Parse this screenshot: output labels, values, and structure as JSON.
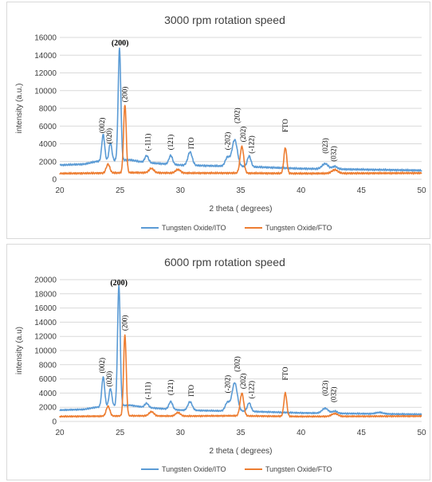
{
  "chart_data": [
    {
      "type": "line",
      "title": "3000 rpm rotation speed",
      "xlabel": "2 theta ( degrees)",
      "ylabel": "intensity (a.u.)",
      "xlim": [
        20,
        50
      ],
      "ylim": [
        0,
        16000
      ],
      "xticks": [
        "20",
        "25",
        "30",
        "35",
        "40",
        "45",
        "50"
      ],
      "yticks": [
        "0",
        "2000",
        "4000",
        "6000",
        "8000",
        "10000",
        "12000",
        "14000",
        "16000"
      ],
      "grid": "horizontal",
      "legend_position": "bottom",
      "series": [
        {
          "name": "Tungsten Oxide/ITO",
          "color": "#5b9bd5",
          "baseline": [
            [
              20,
              1600
            ],
            [
              22,
              1700
            ],
            [
              23,
              2000
            ],
            [
              25.8,
              2200
            ],
            [
              27,
              1900
            ],
            [
              30,
              1600
            ],
            [
              33,
              1500
            ],
            [
              36,
              1400
            ],
            [
              40,
              1200
            ],
            [
              45,
              1100
            ],
            [
              50,
              1000
            ]
          ],
          "peaks": [
            [
              23.6,
              3000,
              0.12
            ],
            [
              24.2,
              2000,
              0.12
            ],
            [
              24.95,
              12600,
              0.11
            ],
            [
              27.2,
              800,
              0.15
            ],
            [
              29.2,
              1000,
              0.15
            ],
            [
              30.8,
              1500,
              0.18
            ],
            [
              33.9,
              1000,
              0.18
            ],
            [
              34.5,
              3000,
              0.22
            ],
            [
              35.7,
              1200,
              0.15
            ],
            [
              42.0,
              600,
              0.25
            ],
            [
              42.8,
              300,
              0.2
            ]
          ]
        },
        {
          "name": "Tungsten Oxide/FTO",
          "color": "#ed7d31",
          "baseline": [
            [
              20,
              650
            ],
            [
              24,
              700
            ],
            [
              26,
              750
            ],
            [
              30,
              700
            ],
            [
              34,
              700
            ],
            [
              40,
              650
            ],
            [
              50,
              700
            ]
          ],
          "peaks": [
            [
              24.0,
              1000,
              0.15
            ],
            [
              25.4,
              7700,
              0.11
            ],
            [
              27.6,
              500,
              0.2
            ],
            [
              29.8,
              400,
              0.2
            ],
            [
              35.1,
              3000,
              0.15
            ],
            [
              38.7,
              2900,
              0.12
            ],
            [
              42.8,
              400,
              0.25
            ]
          ]
        }
      ],
      "annotations": [
        {
          "text": "(200)",
          "x": 25.0,
          "y": 15100,
          "bold": true
        },
        {
          "text": "(002)",
          "x": 23.7,
          "y": 5200,
          "rotate": true
        },
        {
          "text": "(020)",
          "x": 24.3,
          "y": 4000,
          "rotate": true
        },
        {
          "text": "(200)",
          "x": 25.6,
          "y": 8700,
          "rotate": true
        },
        {
          "text": "(-111)",
          "x": 27.5,
          "y": 3200,
          "rotate": true
        },
        {
          "text": "(121)",
          "x": 29.4,
          "y": 3300,
          "rotate": true
        },
        {
          "text": "ITO",
          "x": 31.1,
          "y": 3400,
          "rotate": true
        },
        {
          "text": "(-202)",
          "x": 34.1,
          "y": 3300,
          "rotate": true
        },
        {
          "text": "(202)",
          "x": 34.9,
          "y": 6300,
          "rotate": true
        },
        {
          "text": "(202)",
          "x": 35.4,
          "y": 4200,
          "rotate": true
        },
        {
          "text": "(-122)",
          "x": 36.1,
          "y": 2900,
          "rotate": true
        },
        {
          "text": "FTO",
          "x": 38.9,
          "y": 5300,
          "rotate": true
        },
        {
          "text": "(023)",
          "x": 42.2,
          "y": 2900,
          "rotate": true
        },
        {
          "text": "(032)",
          "x": 42.9,
          "y": 2000,
          "rotate": true
        }
      ]
    },
    {
      "type": "line",
      "title": "6000 rpm rotation speed",
      "xlabel": "2 theta ( degrees)",
      "ylabel": "intensity (a.u)",
      "xlim": [
        20,
        50
      ],
      "ylim": [
        0,
        20000
      ],
      "xticks": [
        "20",
        "25",
        "30",
        "35",
        "40",
        "45",
        "50"
      ],
      "yticks": [
        "0",
        "2000",
        "4000",
        "6000",
        "8000",
        "10000",
        "12000",
        "14000",
        "16000",
        "18000",
        "20000"
      ],
      "grid": "horizontal",
      "legend_position": "bottom",
      "series": [
        {
          "name": "Tungsten Oxide/ITO",
          "color": "#5b9bd5",
          "baseline": [
            [
              20,
              1600
            ],
            [
              22,
              1700
            ],
            [
              23,
              2000
            ],
            [
              25.8,
              2300
            ],
            [
              27,
              2000
            ],
            [
              30,
              1600
            ],
            [
              33,
              1500
            ],
            [
              36,
              1400
            ],
            [
              40,
              1200
            ],
            [
              45,
              1100
            ],
            [
              50,
              1000
            ]
          ],
          "peaks": [
            [
              23.6,
              4200,
              0.12
            ],
            [
              24.2,
              2500,
              0.12
            ],
            [
              24.9,
              17000,
              0.11
            ],
            [
              27.2,
              600,
              0.15
            ],
            [
              29.2,
              1100,
              0.15
            ],
            [
              30.8,
              1200,
              0.18
            ],
            [
              33.9,
              1200,
              0.18
            ],
            [
              34.5,
              4000,
              0.22
            ],
            [
              35.7,
              1200,
              0.15
            ],
            [
              42.0,
              700,
              0.25
            ],
            [
              42.8,
              300,
              0.2
            ],
            [
              46.5,
              200,
              0.3
            ]
          ]
        },
        {
          "name": "Tungsten Oxide/FTO",
          "color": "#ed7d31",
          "baseline": [
            [
              20,
              700
            ],
            [
              24,
              750
            ],
            [
              26,
              800
            ],
            [
              30,
              750
            ],
            [
              34,
              800
            ],
            [
              40,
              700
            ],
            [
              50,
              750
            ]
          ],
          "peaks": [
            [
              24.0,
              1400,
              0.15
            ],
            [
              25.4,
              11400,
              0.11
            ],
            [
              27.6,
              600,
              0.2
            ],
            [
              29.8,
              500,
              0.2
            ],
            [
              35.1,
              3200,
              0.15
            ],
            [
              38.7,
              3300,
              0.12
            ],
            [
              42.8,
              400,
              0.25
            ]
          ]
        }
      ],
      "annotations": [
        {
          "text": "(200)",
          "x": 24.9,
          "y": 19200,
          "bold": true
        },
        {
          "text": "(002)",
          "x": 23.7,
          "y": 6800,
          "rotate": true
        },
        {
          "text": "(020)",
          "x": 24.3,
          "y": 4900,
          "rotate": true
        },
        {
          "text": "(200)",
          "x": 25.6,
          "y": 12800,
          "rotate": true
        },
        {
          "text": "(-111)",
          "x": 27.5,
          "y": 3100,
          "rotate": true
        },
        {
          "text": "(121)",
          "x": 29.4,
          "y": 3700,
          "rotate": true
        },
        {
          "text": "ITO",
          "x": 31.1,
          "y": 3500,
          "rotate": true
        },
        {
          "text": "(-202)",
          "x": 34.1,
          "y": 4000,
          "rotate": true
        },
        {
          "text": "(202)",
          "x": 34.9,
          "y": 7000,
          "rotate": true
        },
        {
          "text": "(202)",
          "x": 35.4,
          "y": 4600,
          "rotate": true
        },
        {
          "text": "(-122)",
          "x": 36.1,
          "y": 3200,
          "rotate": true
        },
        {
          "text": "FTO",
          "x": 38.9,
          "y": 5800,
          "rotate": true
        },
        {
          "text": "(023)",
          "x": 42.2,
          "y": 3600,
          "rotate": true
        },
        {
          "text": "(032)",
          "x": 42.9,
          "y": 2700,
          "rotate": true
        }
      ]
    }
  ]
}
